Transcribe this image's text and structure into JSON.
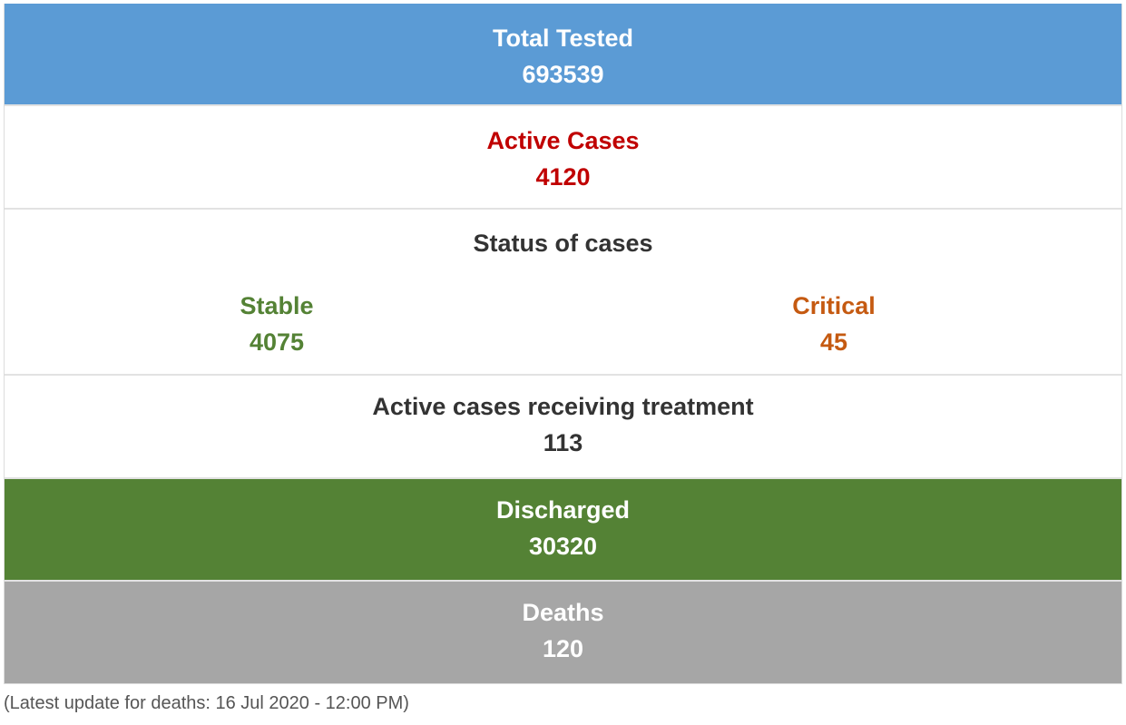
{
  "colors": {
    "tested_bg": "#5b9bd5",
    "active_text": "#c00000",
    "stable_text": "#548235",
    "critical_text": "#c55a11",
    "discharged_bg": "#548235",
    "deaths_bg": "#a6a6a6"
  },
  "total_tested": {
    "label": "Total Tested",
    "value": "693539"
  },
  "active_cases": {
    "label": "Active Cases",
    "value": "4120"
  },
  "status": {
    "title": "Status of cases",
    "stable": {
      "label": "Stable",
      "value": "4075"
    },
    "critical": {
      "label": "Critical",
      "value": "45"
    }
  },
  "treatment": {
    "label": "Active cases receiving treatment",
    "value": "113"
  },
  "discharged": {
    "label": "Discharged",
    "value": "30320"
  },
  "deaths": {
    "label": "Deaths",
    "value": "120"
  },
  "footnote": "(Latest update for deaths: 16 Jul 2020 - 12:00 PM)"
}
